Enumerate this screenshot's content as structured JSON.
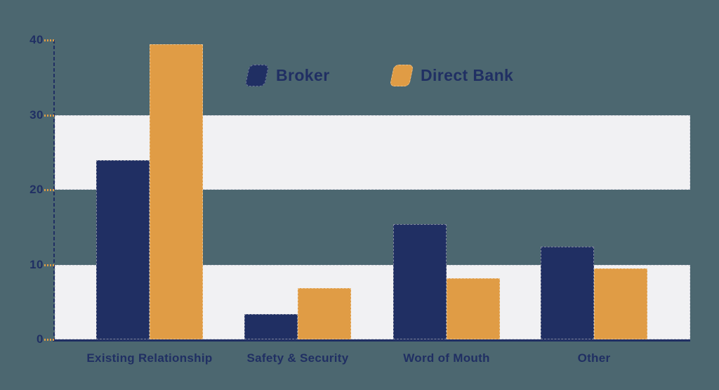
{
  "colors": {
    "background": "#4C6770",
    "navy": "#202F63",
    "orange": "#E09C45",
    "stripe": "#F1F1F3",
    "axis": "#202F63",
    "tick": "#E09C45",
    "label_text": "#202F63"
  },
  "legend": {
    "items": [
      {
        "label": "Broker",
        "color": "#202F63"
      },
      {
        "label": "Direct Bank",
        "color": "#E09C45"
      }
    ]
  },
  "chart_data": {
    "type": "bar",
    "title": "",
    "xlabel": "",
    "ylabel": "",
    "categories": [
      "Existing Relationship",
      "Safety & Security",
      "Word of Mouth",
      "Other"
    ],
    "series": [
      {
        "name": "Broker",
        "color": "#202F63",
        "values": [
          23.9,
          3.4,
          15.4,
          12.4
        ]
      },
      {
        "name": "Direct Bank",
        "color": "#E09C45",
        "values": [
          39.4,
          6.9,
          8.2,
          9.5
        ]
      }
    ],
    "ylim": [
      0,
      40
    ],
    "yticks": [
      0,
      10,
      20,
      30,
      40
    ],
    "band_stripes": [
      [
        0,
        10
      ],
      [
        20,
        30
      ]
    ],
    "grid": false,
    "legend_position": "top-center"
  }
}
